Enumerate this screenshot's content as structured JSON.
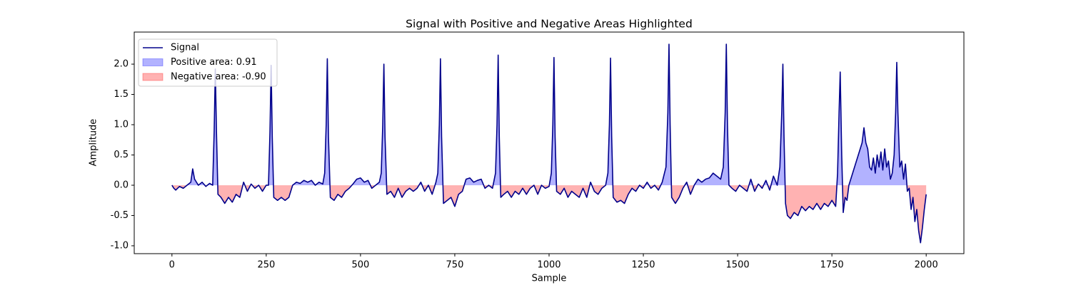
{
  "chart_data": {
    "type": "line",
    "title": "Signal with Positive and Negative Areas Highlighted",
    "xlabel": "Sample",
    "ylabel": "Amplitude",
    "x": [
      0,
      5,
      10,
      20,
      30,
      40,
      50,
      55,
      60,
      70,
      80,
      90,
      100,
      108,
      112,
      115,
      118,
      122,
      130,
      140,
      150,
      160,
      170,
      180,
      190,
      200,
      210,
      220,
      230,
      240,
      250,
      256,
      260,
      263,
      266,
      270,
      280,
      290,
      300,
      310,
      320,
      330,
      340,
      350,
      360,
      370,
      380,
      390,
      400,
      405,
      409,
      412,
      415,
      420,
      430,
      440,
      450,
      460,
      470,
      480,
      490,
      500,
      510,
      520,
      530,
      540,
      550,
      555,
      559,
      562,
      565,
      570,
      580,
      590,
      600,
      610,
      620,
      630,
      640,
      650,
      660,
      670,
      680,
      690,
      700,
      705,
      709,
      712,
      715,
      720,
      730,
      740,
      750,
      760,
      770,
      780,
      790,
      800,
      810,
      820,
      830,
      840,
      850,
      858,
      862,
      865,
      868,
      872,
      880,
      890,
      900,
      910,
      920,
      930,
      940,
      950,
      960,
      970,
      980,
      990,
      1000,
      1006,
      1010,
      1013,
      1016,
      1020,
      1030,
      1040,
      1050,
      1060,
      1070,
      1080,
      1090,
      1100,
      1110,
      1120,
      1130,
      1140,
      1150,
      1156,
      1160,
      1163,
      1166,
      1170,
      1180,
      1190,
      1200,
      1210,
      1220,
      1230,
      1240,
      1250,
      1260,
      1270,
      1280,
      1290,
      1300,
      1310,
      1315,
      1318,
      1321,
      1325,
      1335,
      1345,
      1355,
      1365,
      1375,
      1385,
      1395,
      1405,
      1415,
      1425,
      1435,
      1445,
      1455,
      1462,
      1467,
      1470,
      1473,
      1477,
      1485,
      1495,
      1505,
      1515,
      1525,
      1535,
      1545,
      1555,
      1565,
      1575,
      1585,
      1595,
      1605,
      1612,
      1617,
      1620,
      1623,
      1627,
      1632,
      1640,
      1650,
      1660,
      1670,
      1680,
      1690,
      1700,
      1710,
      1720,
      1730,
      1740,
      1750,
      1760,
      1765,
      1769,
      1772,
      1776,
      1780,
      1785,
      1790,
      1795,
      1800,
      1810,
      1820,
      1830,
      1835,
      1840,
      1845,
      1850,
      1855,
      1860,
      1865,
      1870,
      1875,
      1880,
      1885,
      1890,
      1895,
      1900,
      1905,
      1910,
      1915,
      1919,
      1922,
      1925,
      1930,
      1935,
      1940,
      1945,
      1950,
      1955,
      1960,
      1965,
      1970,
      1975,
      1980,
      1985,
      1990,
      1995,
      2000
    ],
    "series": [
      {
        "name": "Signal",
        "color": "#00008b",
        "values": [
          0,
          -0.05,
          -0.08,
          -0.02,
          -0.05,
          0.0,
          0.05,
          0.27,
          0.1,
          0.0,
          0.05,
          -0.02,
          0.03,
          0.0,
          0.9,
          1.92,
          0.9,
          -0.15,
          -0.2,
          -0.3,
          -0.2,
          -0.28,
          -0.15,
          -0.2,
          0.05,
          -0.1,
          0.02,
          -0.05,
          0.0,
          -0.1,
          0.0,
          0.0,
          0.9,
          1.98,
          0.8,
          -0.2,
          -0.25,
          -0.2,
          -0.25,
          -0.2,
          0.0,
          0.05,
          0.03,
          0.08,
          0.05,
          0.08,
          0.0,
          0.05,
          0.02,
          0.2,
          1.0,
          2.09,
          0.8,
          -0.2,
          -0.25,
          -0.15,
          -0.2,
          -0.1,
          -0.05,
          0.02,
          0.1,
          0.12,
          0.05,
          0.08,
          -0.05,
          0.0,
          0.05,
          0.2,
          1.0,
          2.0,
          0.8,
          -0.15,
          -0.1,
          -0.2,
          -0.05,
          -0.2,
          -0.1,
          -0.05,
          -0.1,
          -0.05,
          0.05,
          -0.1,
          0.0,
          -0.15,
          0.05,
          0.2,
          1.0,
          2.09,
          0.8,
          -0.3,
          -0.25,
          -0.2,
          -0.35,
          -0.15,
          -0.1,
          0.1,
          0.12,
          0.05,
          0.08,
          0.1,
          -0.05,
          0.0,
          -0.05,
          0.2,
          1.0,
          2.15,
          0.8,
          -0.2,
          -0.15,
          -0.1,
          -0.2,
          -0.1,
          -0.15,
          -0.05,
          -0.15,
          -0.05,
          0.0,
          -0.15,
          0.0,
          -0.05,
          -0.02,
          0.2,
          1.0,
          2.11,
          0.8,
          -0.1,
          -0.15,
          -0.05,
          -0.2,
          -0.1,
          -0.15,
          -0.2,
          -0.05,
          -0.2,
          0.05,
          -0.1,
          -0.15,
          -0.05,
          0.0,
          0.2,
          1.0,
          2.1,
          0.8,
          -0.2,
          -0.28,
          -0.25,
          -0.3,
          -0.15,
          -0.05,
          -0.1,
          0.0,
          -0.05,
          0.05,
          -0.05,
          0.0,
          -0.08,
          0.05,
          0.3,
          1.2,
          2.33,
          1.0,
          -0.2,
          -0.3,
          -0.2,
          -0.05,
          0.05,
          -0.15,
          0.0,
          0.1,
          0.05,
          0.1,
          0.12,
          0.2,
          0.15,
          0.1,
          0.3,
          1.2,
          2.33,
          1.0,
          0.0,
          -0.05,
          -0.1,
          0.0,
          -0.05,
          -0.1,
          0.1,
          -0.1,
          0.02,
          -0.05,
          0.08,
          -0.08,
          0.15,
          0.0,
          0.3,
          1.2,
          2.0,
          0.8,
          -0.3,
          -0.5,
          -0.55,
          -0.45,
          -0.5,
          -0.35,
          -0.42,
          -0.35,
          -0.4,
          -0.3,
          -0.4,
          -0.3,
          -0.35,
          -0.25,
          -0.35,
          0.2,
          1.2,
          1.87,
          0.5,
          -0.45,
          -0.2,
          -0.25,
          0.0,
          0.1,
          0.3,
          0.5,
          0.7,
          0.95,
          0.7,
          0.6,
          0.3,
          0.25,
          0.45,
          0.2,
          0.5,
          0.3,
          0.55,
          0.25,
          0.6,
          0.3,
          0.4,
          0.1,
          0.2,
          0.5,
          1.2,
          2.03,
          1.2,
          0.3,
          0.4,
          0.1,
          0.35,
          -0.1,
          -0.05,
          -0.4,
          -0.2,
          -0.6,
          -0.4,
          -0.75,
          -0.95,
          -0.7,
          -0.4,
          -0.15
        ]
      }
    ],
    "areas": [
      {
        "name": "Positive area: 0.91",
        "color": "blue"
      },
      {
        "name": "Negative area: -0.90",
        "color": "red"
      }
    ],
    "xlim": [
      -100,
      2100
    ],
    "xticks": [
      0,
      250,
      500,
      750,
      1000,
      1250,
      1500,
      1750,
      2000
    ],
    "ylim": [
      -1.13,
      2.53
    ],
    "yticks": [
      {
        "value": -1,
        "label": "-1.0"
      },
      -0.5,
      {
        "value": 0,
        "label": "0.0"
      },
      0.5,
      {
        "value": 1,
        "label": "1.0"
      },
      1.5,
      {
        "value": 2,
        "label": "2.0"
      }
    ],
    "legend": "upper left"
  }
}
